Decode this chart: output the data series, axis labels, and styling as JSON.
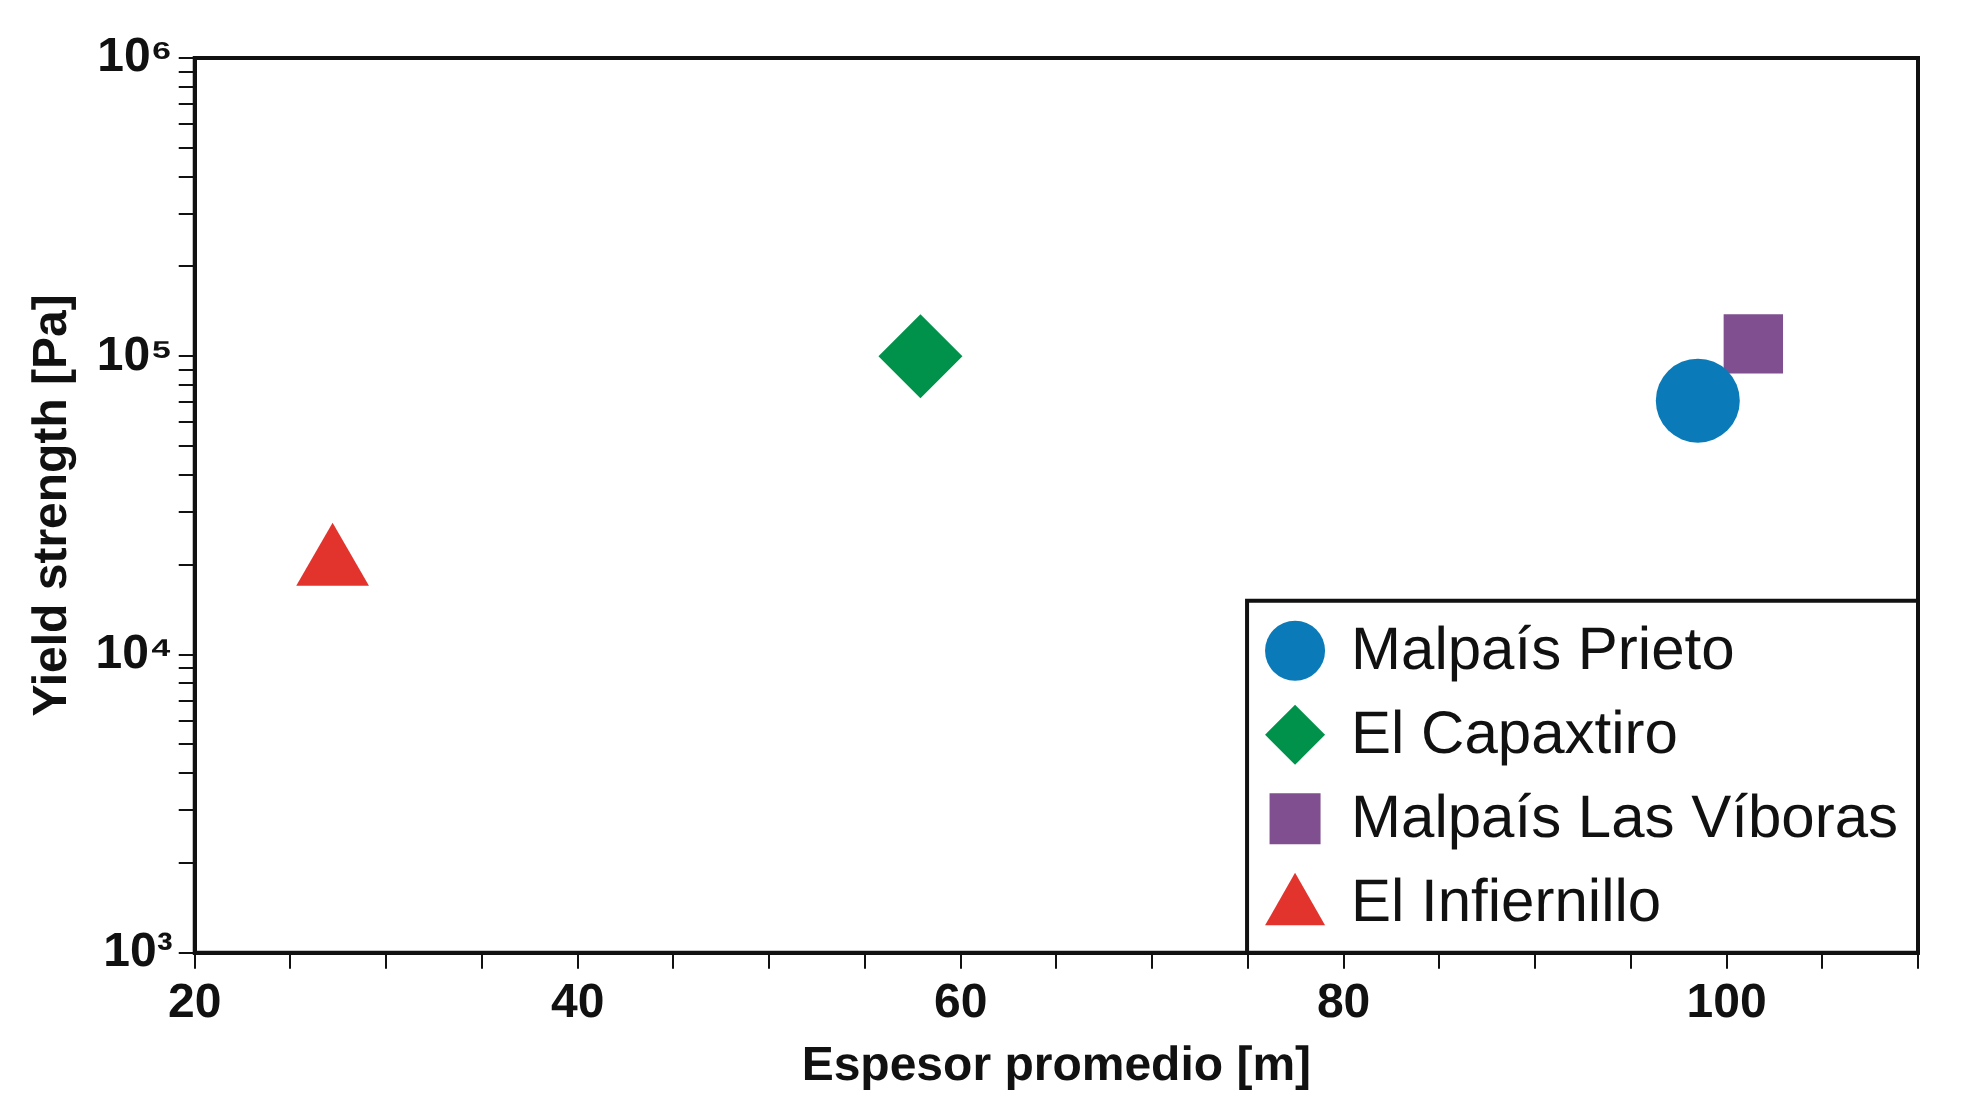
{
  "chart_data": {
    "type": "scatter",
    "xlabel": "Espesor promedio [m]",
    "ylabel": "Yield strength [Pa]",
    "log": "y",
    "grid": false,
    "legend": "bottom right",
    "xlim": [
      20,
      110
    ],
    "ylim": [
      1000,
      1000000
    ],
    "xticks": [
      20,
      {
        "value": 25,
        "label": null
      },
      {
        "value": 30,
        "label": null
      },
      {
        "value": 35,
        "label": null
      },
      40,
      {
        "value": 45,
        "label": null
      },
      {
        "value": 50,
        "label": null
      },
      {
        "value": 55,
        "label": null
      },
      60,
      {
        "value": 65,
        "label": null
      },
      {
        "value": 70,
        "label": null
      },
      {
        "value": 75,
        "label": null
      },
      80,
      {
        "value": 85,
        "label": null
      },
      {
        "value": 90,
        "label": null
      },
      {
        "value": 95,
        "label": null
      },
      100,
      {
        "value": 105,
        "label": null
      },
      {
        "value": 110,
        "label": null
      }
    ],
    "yticks": [
      {
        "value": 1000,
        "label": "10³"
      },
      {
        "value": 2000,
        "label": null
      },
      {
        "value": 3000,
        "label": null
      },
      {
        "value": 4000,
        "label": null
      },
      {
        "value": 5000,
        "label": null
      },
      {
        "value": 6000,
        "label": null
      },
      {
        "value": 7000,
        "label": null
      },
      {
        "value": 8000,
        "label": null
      },
      {
        "value": 9000,
        "label": null
      },
      {
        "value": 10000,
        "label": "10⁴"
      },
      {
        "value": 20000,
        "label": null
      },
      {
        "value": 30000,
        "label": null
      },
      {
        "value": 40000,
        "label": null
      },
      {
        "value": 50000,
        "label": null
      },
      {
        "value": 60000,
        "label": null
      },
      {
        "value": 70000,
        "label": null
      },
      {
        "value": 80000,
        "label": null
      },
      {
        "value": 90000,
        "label": null
      },
      {
        "value": 100000,
        "label": "10⁵"
      },
      {
        "value": 200000,
        "label": null
      },
      {
        "value": 300000,
        "label": null
      },
      {
        "value": 400000,
        "label": null
      },
      {
        "value": 500000,
        "label": null
      },
      {
        "value": 600000,
        "label": null
      },
      {
        "value": 700000,
        "label": null
      },
      {
        "value": 800000,
        "label": null
      },
      {
        "value": 900000,
        "label": null
      },
      {
        "value": 1000000,
        "label": "10⁶"
      }
    ],
    "series": [
      {
        "name": "Malpaís Prieto",
        "color": "#0a7bb8",
        "marker": "circle",
        "x": [
          98.5
        ],
        "values": [
          71000
        ]
      },
      {
        "name": "El Capaxtiro",
        "color": "#00924a",
        "marker": "diamond",
        "x": [
          57.9
        ],
        "values": [
          100000
        ]
      },
      {
        "name": "Malpaís Las Víboras",
        "color": "#7f4f90",
        "marker": "square",
        "x": [
          101.4
        ],
        "values": [
          110000
        ]
      },
      {
        "name": "El Infiernillo",
        "color": "#e2342d",
        "marker": "triangle",
        "x": [
          27.2
        ],
        "values": [
          20000
        ]
      }
    ]
  }
}
